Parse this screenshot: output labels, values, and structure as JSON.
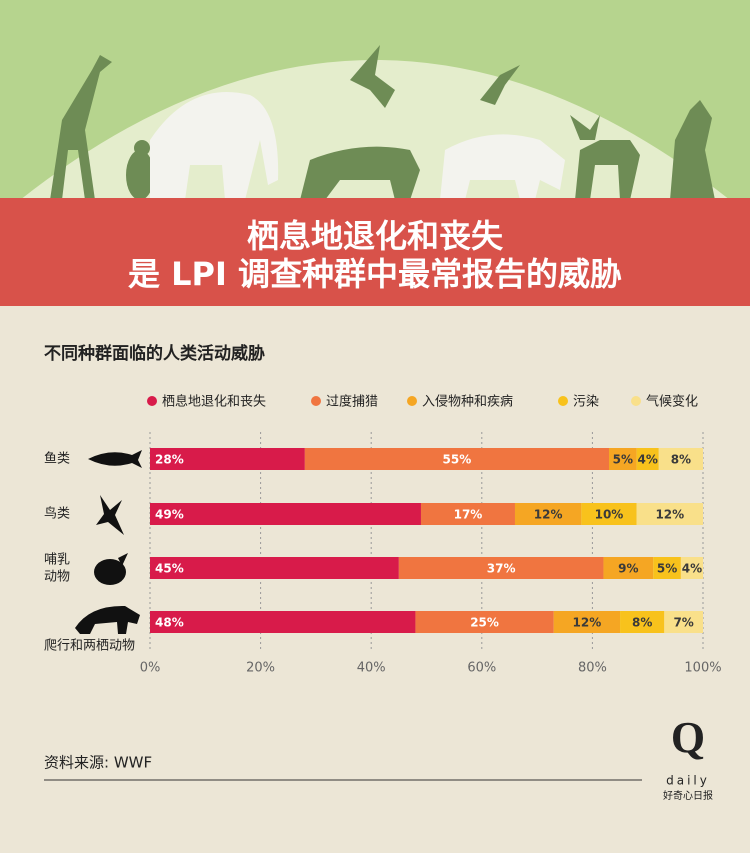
{
  "chart_data": {
    "type": "stacked-bar-horizontal",
    "title": [
      "栖息地退化和丧失",
      "是 LPI 调查种群中最常报告的威胁"
    ],
    "subtitle": "不同种群面临的人类活动威胁",
    "categories": [
      "鱼类",
      "鸟类",
      "哺乳\n动物",
      "爬行和两栖动物"
    ],
    "series": [
      {
        "name": "栖息地退化和丧失",
        "color": "#d81b4a",
        "values": [
          28,
          49,
          45,
          48
        ],
        "value_labels": [
          "28%",
          "49%",
          "45%",
          "48%"
        ]
      },
      {
        "name": "过度捕猎",
        "color": "#f07540",
        "values": [
          55,
          17,
          37,
          25
        ],
        "value_labels": [
          "55%",
          "17%",
          "37%",
          "25%"
        ]
      },
      {
        "name": "入侵物种和疾病",
        "color": "#f5a623",
        "values": [
          5,
          12,
          9,
          12
        ],
        "value_labels": [
          "5%",
          "12%",
          "9%",
          "12%"
        ]
      },
      {
        "name": "污染",
        "color": "#f8c21c",
        "values": [
          4,
          10,
          5,
          8
        ],
        "value_labels": [
          "4%",
          "10%",
          "5%",
          "8%"
        ]
      },
      {
        "name": "气候变化",
        "color": "#f9e08a",
        "values": [
          8,
          12,
          4,
          7
        ],
        "value_labels": [
          "8%",
          "12%",
          "4%",
          "7%"
        ]
      }
    ],
    "xlim": [
      0,
      100
    ],
    "xticks": [
      {
        "value": 0,
        "label": "0%"
      },
      {
        "value": 20,
        "label": "20%"
      },
      {
        "value": 40,
        "label": "40%"
      },
      {
        "value": 60,
        "label": "60%"
      },
      {
        "value": 80,
        "label": "80%"
      },
      {
        "value": 100,
        "label": "100%"
      }
    ],
    "grid": true,
    "source": "资料来源: WWF"
  },
  "logo": {
    "mark": "Q",
    "word": "daily",
    "name": "好奇心日报"
  }
}
